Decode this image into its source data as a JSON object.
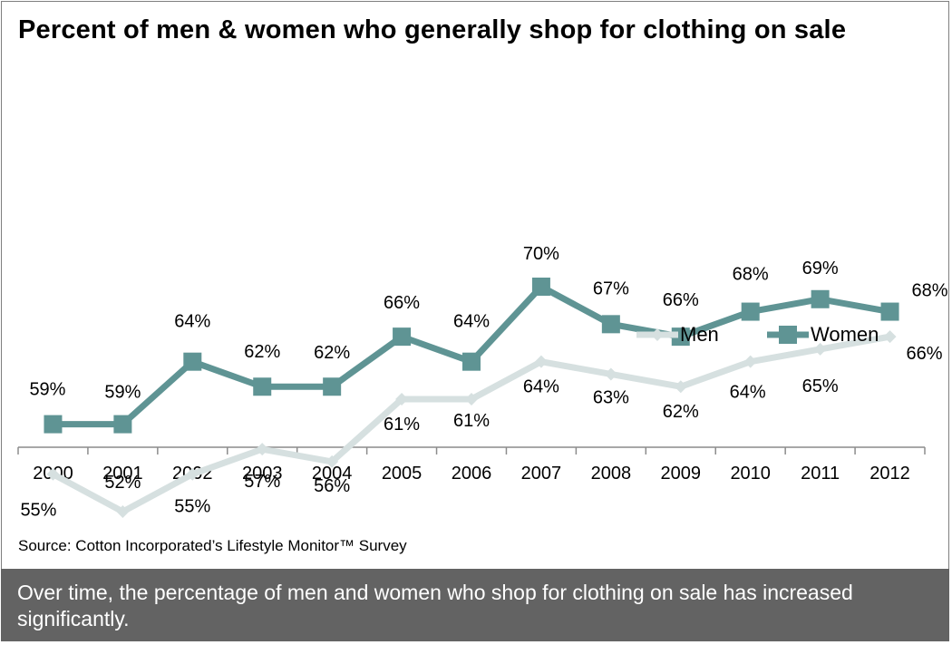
{
  "chart_data": {
    "type": "line",
    "title": "Percent of men & women who generally shop for clothing on sale",
    "xlabel": "",
    "ylabel": "",
    "categories": [
      "2000",
      "2001",
      "2002",
      "2003",
      "2004",
      "2005",
      "2006",
      "2007",
      "2008",
      "2009",
      "2010",
      "2011",
      "2012"
    ],
    "series": [
      {
        "name": "Men",
        "values": [
          55,
          52,
          55,
          57,
          56,
          61,
          61,
          64,
          63,
          62,
          64,
          65,
          66
        ],
        "color": "#d6e0e0",
        "marker": "diamond"
      },
      {
        "name": "Women",
        "values": [
          59,
          59,
          64,
          62,
          62,
          66,
          64,
          70,
          67,
          66,
          68,
          69,
          68
        ],
        "color": "#5f9494",
        "marker": "square"
      }
    ],
    "value_suffix": "%",
    "ylim": [
      50,
      72
    ],
    "grid": false,
    "legend": "right"
  },
  "source": "Source: Cotton Incorporated’s Lifestyle Monitor™ Survey",
  "footer": "Over time, the percentage of men and women who shop for clothing on sale has increased significantly."
}
